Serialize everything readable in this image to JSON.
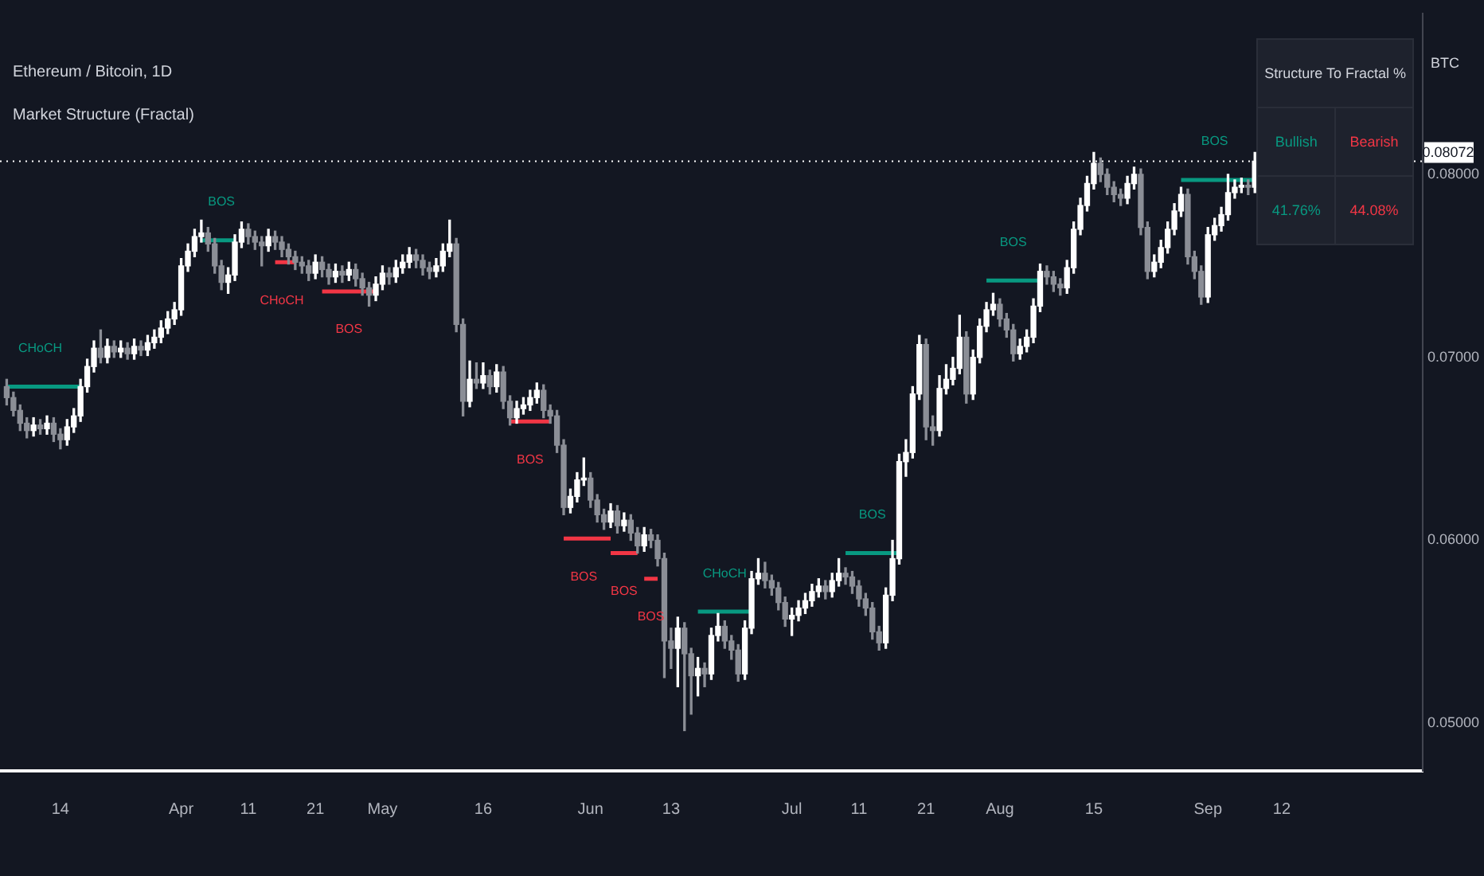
{
  "chart_data": {
    "type": "candlestick",
    "title": "Ethereum / Bitcoin, 1D",
    "subtitle": "Market Structure (Fractal)",
    "ylabel": "BTC",
    "xlim": [
      "--03-05",
      "--10-03"
    ],
    "xticks": [
      {
        "value": "--03-14",
        "label": "14"
      },
      {
        "value": "--04-01",
        "label": "Apr"
      },
      {
        "value": "--04-11",
        "label": "11"
      },
      {
        "value": "--04-21",
        "label": "21"
      },
      {
        "value": "--05-01",
        "label": "May"
      },
      {
        "value": "--05-16",
        "label": "16"
      },
      {
        "value": "--06-01",
        "label": "Jun"
      },
      {
        "value": "--06-13",
        "label": "13"
      },
      {
        "value": "--07-01",
        "label": "Jul"
      },
      {
        "value": "--07-11",
        "label": "11"
      },
      {
        "value": "--07-21",
        "label": "21"
      },
      {
        "value": "--08-01",
        "label": "Aug"
      },
      {
        "value": "--08-15",
        "label": "15"
      },
      {
        "value": "--09-01",
        "label": "Sep"
      },
      {
        "value": "--09-12",
        "label": "12"
      }
    ],
    "ylim": [
      0.0474,
      0.0888
    ],
    "yticks": [
      {
        "value": 0.05,
        "label": "0.05000"
      },
      {
        "value": 0.06,
        "label": "0.06000"
      },
      {
        "value": 0.07,
        "label": "0.07000"
      },
      {
        "value": 0.08,
        "label": "0.08000"
      }
    ],
    "grid": false,
    "legend": false,
    "ref_lines": [
      {
        "axis": "y",
        "value": 0.08072,
        "label": "0.08072",
        "color": "#ffffff"
      }
    ],
    "series": [
      {
        "x": [
          "--03-06",
          "--03-07",
          "--03-08",
          "--03-09",
          "--03-10",
          "--03-11",
          "--03-12",
          "--03-13",
          "--03-14",
          "--03-15",
          "--03-16",
          "--03-17",
          "--03-18",
          "--03-19",
          "--03-20",
          "--03-21",
          "--03-22",
          "--03-23",
          "--03-24",
          "--03-25",
          "--03-26",
          "--03-27",
          "--03-28",
          "--03-29",
          "--03-30",
          "--03-31",
          "--04-01",
          "--04-02",
          "--04-03",
          "--04-04",
          "--04-05",
          "--04-06",
          "--04-07",
          "--04-08",
          "--04-09",
          "--04-10",
          "--04-11",
          "--04-12",
          "--04-13",
          "--04-14",
          "--04-15",
          "--04-16",
          "--04-17",
          "--04-18",
          "--04-19",
          "--04-20",
          "--04-21",
          "--04-22",
          "--04-23",
          "--04-24",
          "--04-25",
          "--04-26",
          "--04-27",
          "--04-28",
          "--04-29",
          "--04-30",
          "--05-01",
          "--05-02",
          "--05-03",
          "--05-04",
          "--05-05",
          "--05-06",
          "--05-07",
          "--05-08",
          "--05-09",
          "--05-10",
          "--05-11",
          "--05-12",
          "--05-13",
          "--05-14",
          "--05-15",
          "--05-16",
          "--05-17",
          "--05-18",
          "--05-19",
          "--05-20",
          "--05-21",
          "--05-22",
          "--05-23",
          "--05-24",
          "--05-25",
          "--05-26",
          "--05-27",
          "--05-28",
          "--05-29",
          "--05-30",
          "--05-31",
          "--06-01",
          "--06-02",
          "--06-03",
          "--06-04",
          "--06-05",
          "--06-06",
          "--06-07",
          "--06-08",
          "--06-09",
          "--06-10",
          "--06-11",
          "--06-12",
          "--06-13",
          "--06-14",
          "--06-15",
          "--06-16",
          "--06-17",
          "--06-18",
          "--06-19",
          "--06-20",
          "--06-21",
          "--06-22",
          "--06-23",
          "--06-24",
          "--06-25",
          "--06-26",
          "--06-27",
          "--06-28",
          "--06-29",
          "--06-30",
          "--07-01",
          "--07-02",
          "--07-03",
          "--07-04",
          "--07-05",
          "--07-06",
          "--07-07",
          "--07-08",
          "--07-09",
          "--07-10",
          "--07-11",
          "--07-12",
          "--07-13",
          "--07-14",
          "--07-15",
          "--07-16",
          "--07-17",
          "--07-18",
          "--07-19",
          "--07-20",
          "--07-21",
          "--07-22",
          "--07-23",
          "--07-24",
          "--07-25",
          "--07-26",
          "--07-27",
          "--07-28",
          "--07-29",
          "--07-30",
          "--07-31",
          "--08-01",
          "--08-02",
          "--08-03",
          "--08-04",
          "--08-05",
          "--08-06",
          "--08-07",
          "--08-08",
          "--08-09",
          "--08-10",
          "--08-11",
          "--08-12",
          "--08-13",
          "--08-14",
          "--08-15",
          "--08-16",
          "--08-17",
          "--08-18",
          "--08-19",
          "--08-20",
          "--08-21",
          "--08-22",
          "--08-23",
          "--08-24",
          "--08-25",
          "--08-26",
          "--08-27",
          "--08-28",
          "--08-29",
          "--08-30",
          "--08-31",
          "--09-01",
          "--09-02",
          "--09-03",
          "--09-04",
          "--09-05",
          "--09-06",
          "--09-07",
          "--09-08"
        ],
        "ohlc": [
          [
            0.0684,
            0.0688,
            0.0674,
            0.0678
          ],
          [
            0.0678,
            0.0681,
            0.0668,
            0.0671
          ],
          [
            0.0671,
            0.0674,
            0.066,
            0.0664
          ],
          [
            0.0664,
            0.0667,
            0.0656,
            0.066
          ],
          [
            0.066,
            0.0667,
            0.0657,
            0.0663
          ],
          [
            0.0663,
            0.0666,
            0.0658,
            0.0661
          ],
          [
            0.0661,
            0.0668,
            0.0658,
            0.0664
          ],
          [
            0.0664,
            0.0667,
            0.0654,
            0.0658
          ],
          [
            0.0658,
            0.0661,
            0.065,
            0.0655
          ],
          [
            0.0655,
            0.0666,
            0.0652,
            0.0662
          ],
          [
            0.0662,
            0.0672,
            0.0659,
            0.0668
          ],
          [
            0.0668,
            0.0688,
            0.0665,
            0.0684
          ],
          [
            0.0684,
            0.0699,
            0.0681,
            0.0695
          ],
          [
            0.0695,
            0.0709,
            0.0692,
            0.0705
          ],
          [
            0.0705,
            0.0715,
            0.0697,
            0.07
          ],
          [
            0.07,
            0.071,
            0.0697,
            0.0706
          ],
          [
            0.0706,
            0.0709,
            0.07,
            0.0703
          ],
          [
            0.0703,
            0.0709,
            0.07,
            0.0705
          ],
          [
            0.0705,
            0.0708,
            0.0699,
            0.0702
          ],
          [
            0.0702,
            0.071,
            0.0699,
            0.0706
          ],
          [
            0.0706,
            0.0709,
            0.0701,
            0.0704
          ],
          [
            0.0704,
            0.0712,
            0.0701,
            0.0708
          ],
          [
            0.0708,
            0.0715,
            0.0705,
            0.0711
          ],
          [
            0.0711,
            0.072,
            0.0708,
            0.0716
          ],
          [
            0.0716,
            0.0725,
            0.0713,
            0.0721
          ],
          [
            0.0721,
            0.073,
            0.0718,
            0.0726
          ],
          [
            0.0726,
            0.0754,
            0.0723,
            0.075
          ],
          [
            0.075,
            0.0762,
            0.0747,
            0.0758
          ],
          [
            0.0758,
            0.077,
            0.0755,
            0.0766
          ],
          [
            0.0766,
            0.0775,
            0.0763,
            0.0768
          ],
          [
            0.0768,
            0.0771,
            0.0758,
            0.0762
          ],
          [
            0.0762,
            0.0765,
            0.0746,
            0.075
          ],
          [
            0.075,
            0.0753,
            0.0737,
            0.0741
          ],
          [
            0.0741,
            0.0749,
            0.0735,
            0.0745
          ],
          [
            0.0745,
            0.0767,
            0.0742,
            0.0763
          ],
          [
            0.0763,
            0.0774,
            0.076,
            0.077
          ],
          [
            0.077,
            0.0773,
            0.0762,
            0.0766
          ],
          [
            0.0766,
            0.0769,
            0.0759,
            0.0763
          ],
          [
            0.0763,
            0.0766,
            0.075,
            0.0761
          ],
          [
            0.0761,
            0.077,
            0.0758,
            0.0766
          ],
          [
            0.0766,
            0.0769,
            0.0759,
            0.0763
          ],
          [
            0.0763,
            0.0766,
            0.0755,
            0.0759
          ],
          [
            0.0759,
            0.0762,
            0.0751,
            0.0755
          ],
          [
            0.0755,
            0.0758,
            0.0748,
            0.0752
          ],
          [
            0.0752,
            0.0755,
            0.0746,
            0.075
          ],
          [
            0.075,
            0.0753,
            0.0742,
            0.0746
          ],
          [
            0.0746,
            0.0756,
            0.0743,
            0.0752
          ],
          [
            0.0752,
            0.0755,
            0.0744,
            0.0748
          ],
          [
            0.0748,
            0.0751,
            0.074,
            0.0744
          ],
          [
            0.0744,
            0.0751,
            0.0741,
            0.0747
          ],
          [
            0.0747,
            0.075,
            0.0741,
            0.0745
          ],
          [
            0.0745,
            0.0752,
            0.0742,
            0.0748
          ],
          [
            0.0748,
            0.0751,
            0.0739,
            0.0743
          ],
          [
            0.0743,
            0.0746,
            0.0734,
            0.0738
          ],
          [
            0.0738,
            0.0741,
            0.0728,
            0.0734
          ],
          [
            0.0734,
            0.0744,
            0.0731,
            0.074
          ],
          [
            0.074,
            0.075,
            0.0737,
            0.0746
          ],
          [
            0.0746,
            0.0749,
            0.074,
            0.0744
          ],
          [
            0.0744,
            0.0753,
            0.0741,
            0.0749
          ],
          [
            0.0749,
            0.0756,
            0.0746,
            0.0752
          ],
          [
            0.0752,
            0.076,
            0.0749,
            0.0756
          ],
          [
            0.0756,
            0.0759,
            0.0749,
            0.0753
          ],
          [
            0.0753,
            0.0756,
            0.0745,
            0.0749
          ],
          [
            0.0749,
            0.0752,
            0.0743,
            0.0747
          ],
          [
            0.0747,
            0.0754,
            0.0744,
            0.075
          ],
          [
            0.075,
            0.0762,
            0.0747,
            0.0758
          ],
          [
            0.0758,
            0.0775,
            0.0755,
            0.0762
          ],
          [
            0.0762,
            0.0765,
            0.0714,
            0.0718
          ],
          [
            0.0718,
            0.0721,
            0.0668,
            0.0676
          ],
          [
            0.0676,
            0.0698,
            0.0673,
            0.0688
          ],
          [
            0.0688,
            0.0697,
            0.0683,
            0.0686
          ],
          [
            0.0686,
            0.0697,
            0.0683,
            0.069
          ],
          [
            0.069,
            0.0693,
            0.068,
            0.0684
          ],
          [
            0.0684,
            0.0696,
            0.0681,
            0.0692
          ],
          [
            0.0692,
            0.0695,
            0.0672,
            0.0676
          ],
          [
            0.0676,
            0.0679,
            0.0663,
            0.0667
          ],
          [
            0.0667,
            0.0676,
            0.0664,
            0.0672
          ],
          [
            0.0672,
            0.0678,
            0.0669,
            0.0674
          ],
          [
            0.0674,
            0.0682,
            0.0671,
            0.0678
          ],
          [
            0.0678,
            0.0686,
            0.0675,
            0.0682
          ],
          [
            0.0682,
            0.0685,
            0.0667,
            0.0671
          ],
          [
            0.0671,
            0.0674,
            0.0664,
            0.0668
          ],
          [
            0.0668,
            0.0671,
            0.0648,
            0.0652
          ],
          [
            0.0652,
            0.0655,
            0.0614,
            0.0618
          ],
          [
            0.0618,
            0.0628,
            0.0615,
            0.0624
          ],
          [
            0.0624,
            0.0637,
            0.0621,
            0.0633
          ],
          [
            0.0633,
            0.0645,
            0.063,
            0.0634
          ],
          [
            0.0634,
            0.0637,
            0.0618,
            0.0622
          ],
          [
            0.0622,
            0.0625,
            0.061,
            0.0614
          ],
          [
            0.0614,
            0.0617,
            0.0606,
            0.061
          ],
          [
            0.061,
            0.062,
            0.0607,
            0.0616
          ],
          [
            0.0616,
            0.0619,
            0.0604,
            0.0608
          ],
          [
            0.0608,
            0.0615,
            0.0605,
            0.0611
          ],
          [
            0.0611,
            0.0614,
            0.06,
            0.0604
          ],
          [
            0.0604,
            0.0607,
            0.0593,
            0.0597
          ],
          [
            0.0597,
            0.0607,
            0.0594,
            0.0603
          ],
          [
            0.0603,
            0.0606,
            0.0596,
            0.06
          ],
          [
            0.06,
            0.0603,
            0.0586,
            0.059
          ],
          [
            0.059,
            0.0593,
            0.0525,
            0.0545
          ],
          [
            0.0545,
            0.0552,
            0.053,
            0.0541
          ],
          [
            0.0541,
            0.0558,
            0.052,
            0.0552
          ],
          [
            0.0552,
            0.0555,
            0.0496,
            0.0538
          ],
          [
            0.0538,
            0.0541,
            0.0505,
            0.0526
          ],
          [
            0.0526,
            0.0536,
            0.0515,
            0.053
          ],
          [
            0.053,
            0.0533,
            0.052,
            0.0527
          ],
          [
            0.0527,
            0.0552,
            0.0524,
            0.0548
          ],
          [
            0.0548,
            0.056,
            0.0545,
            0.0553
          ],
          [
            0.0553,
            0.0556,
            0.0541,
            0.0545
          ],
          [
            0.0545,
            0.0548,
            0.0535,
            0.054
          ],
          [
            0.054,
            0.0543,
            0.0523,
            0.0527
          ],
          [
            0.0527,
            0.0556,
            0.0524,
            0.0552
          ],
          [
            0.0552,
            0.0583,
            0.0549,
            0.0579
          ],
          [
            0.0579,
            0.059,
            0.0576,
            0.0582
          ],
          [
            0.0582,
            0.0588,
            0.0574,
            0.0578
          ],
          [
            0.0578,
            0.0581,
            0.057,
            0.0574
          ],
          [
            0.0574,
            0.0577,
            0.0562,
            0.0566
          ],
          [
            0.0566,
            0.0569,
            0.0553,
            0.0557
          ],
          [
            0.0557,
            0.0563,
            0.0548,
            0.0559
          ],
          [
            0.0559,
            0.0567,
            0.0556,
            0.0563
          ],
          [
            0.0563,
            0.0571,
            0.056,
            0.0567
          ],
          [
            0.0567,
            0.0576,
            0.0564,
            0.0572
          ],
          [
            0.0572,
            0.0579,
            0.0569,
            0.0575
          ],
          [
            0.0575,
            0.0578,
            0.0568,
            0.0572
          ],
          [
            0.0572,
            0.0582,
            0.0569,
            0.0578
          ],
          [
            0.0578,
            0.059,
            0.0575,
            0.0582
          ],
          [
            0.0582,
            0.0585,
            0.0576,
            0.058
          ],
          [
            0.058,
            0.0583,
            0.0571,
            0.0575
          ],
          [
            0.0575,
            0.0578,
            0.0564,
            0.0568
          ],
          [
            0.0568,
            0.0571,
            0.0559,
            0.0563
          ],
          [
            0.0563,
            0.0566,
            0.0546,
            0.055
          ],
          [
            0.055,
            0.0553,
            0.054,
            0.0544
          ],
          [
            0.0544,
            0.0574,
            0.0541,
            0.057
          ],
          [
            0.057,
            0.06,
            0.0567,
            0.059
          ],
          [
            0.059,
            0.0647,
            0.0587,
            0.0643
          ],
          [
            0.0643,
            0.0655,
            0.0635,
            0.0648
          ],
          [
            0.0648,
            0.0684,
            0.0645,
            0.068
          ],
          [
            0.068,
            0.0712,
            0.0677,
            0.0707
          ],
          [
            0.0707,
            0.071,
            0.0655,
            0.0662
          ],
          [
            0.0662,
            0.0668,
            0.0652,
            0.066
          ],
          [
            0.066,
            0.069,
            0.0657,
            0.0683
          ],
          [
            0.0683,
            0.0696,
            0.068,
            0.0688
          ],
          [
            0.0688,
            0.07,
            0.0685,
            0.0694
          ],
          [
            0.0694,
            0.0723,
            0.0691,
            0.0711
          ],
          [
            0.0711,
            0.0714,
            0.0675,
            0.068
          ],
          [
            0.068,
            0.0704,
            0.0677,
            0.07
          ],
          [
            0.07,
            0.0721,
            0.0697,
            0.0717
          ],
          [
            0.0717,
            0.073,
            0.0714,
            0.0726
          ],
          [
            0.0726,
            0.0735,
            0.0723,
            0.0729
          ],
          [
            0.0729,
            0.0732,
            0.0717,
            0.0721
          ],
          [
            0.0721,
            0.0724,
            0.0711,
            0.0715
          ],
          [
            0.0715,
            0.0718,
            0.0698,
            0.0702
          ],
          [
            0.0702,
            0.071,
            0.0699,
            0.0706
          ],
          [
            0.0706,
            0.0715,
            0.0703,
            0.0711
          ],
          [
            0.0711,
            0.0732,
            0.0708,
            0.0728
          ],
          [
            0.0728,
            0.0751,
            0.0725,
            0.0747
          ],
          [
            0.0747,
            0.075,
            0.074,
            0.0744
          ],
          [
            0.0744,
            0.0747,
            0.0736,
            0.074
          ],
          [
            0.074,
            0.0743,
            0.0734,
            0.0738
          ],
          [
            0.0738,
            0.0753,
            0.0735,
            0.0749
          ],
          [
            0.0749,
            0.0774,
            0.0746,
            0.077
          ],
          [
            0.077,
            0.0787,
            0.0767,
            0.0783
          ],
          [
            0.0783,
            0.0799,
            0.078,
            0.0795
          ],
          [
            0.0795,
            0.0812,
            0.0792,
            0.0806
          ],
          [
            0.0806,
            0.0809,
            0.0796,
            0.08
          ],
          [
            0.08,
            0.0803,
            0.0789,
            0.0793
          ],
          [
            0.0793,
            0.0796,
            0.0785,
            0.0789
          ],
          [
            0.0789,
            0.0792,
            0.0783,
            0.0787
          ],
          [
            0.0787,
            0.0799,
            0.0784,
            0.0795
          ],
          [
            0.0795,
            0.0804,
            0.0792,
            0.08
          ],
          [
            0.08,
            0.0803,
            0.0767,
            0.0771
          ],
          [
            0.0771,
            0.0774,
            0.0743,
            0.0747
          ],
          [
            0.0747,
            0.0756,
            0.0744,
            0.0752
          ],
          [
            0.0752,
            0.0764,
            0.0749,
            0.076
          ],
          [
            0.076,
            0.0774,
            0.0757,
            0.077
          ],
          [
            0.077,
            0.0784,
            0.0767,
            0.078
          ],
          [
            0.078,
            0.0793,
            0.0777,
            0.0789
          ],
          [
            0.0789,
            0.0792,
            0.0751,
            0.0755
          ],
          [
            0.0755,
            0.0758,
            0.0743,
            0.0747
          ],
          [
            0.0747,
            0.075,
            0.0729,
            0.0733
          ],
          [
            0.0733,
            0.0771,
            0.073,
            0.0767
          ],
          [
            0.0767,
            0.0776,
            0.0764,
            0.0772
          ],
          [
            0.0772,
            0.0782,
            0.0769,
            0.0778
          ],
          [
            0.0778,
            0.08,
            0.0775,
            0.079
          ],
          [
            0.079,
            0.0797,
            0.0787,
            0.0793
          ],
          [
            0.0793,
            0.0798,
            0.079,
            0.0794
          ],
          [
            0.0794,
            0.0797,
            0.0789,
            0.0793
          ],
          [
            0.0793,
            0.0812,
            0.079,
            0.08072
          ]
        ]
      },
      {
        "type": "line",
        "color": "#089981",
        "x": [
          "--03-06",
          "--03-17"
        ],
        "values": [
          0.0684,
          0.0684
        ]
      },
      {
        "type": "line",
        "color": "#089981",
        "x": [
          "--04-04",
          "--04-09"
        ],
        "values": [
          0.0764,
          0.0764
        ]
      },
      {
        "type": "line",
        "color": "#f23645",
        "x": [
          "--04-15",
          "--04-18"
        ],
        "values": [
          0.0752,
          0.0752
        ]
      },
      {
        "type": "line",
        "color": "#f23645",
        "x": [
          "--04-22",
          "--04-30"
        ],
        "values": [
          0.0736,
          0.0736
        ]
      },
      {
        "type": "line",
        "color": "#f23645",
        "x": [
          "--05-20",
          "--05-26"
        ],
        "values": [
          0.0665,
          0.0665
        ]
      },
      {
        "type": "line",
        "color": "#f23645",
        "x": [
          "--05-28",
          "--06-04"
        ],
        "values": [
          0.0601,
          0.0601
        ]
      },
      {
        "type": "line",
        "color": "#f23645",
        "x": [
          "--06-04",
          "--06-08"
        ],
        "values": [
          0.0593,
          0.0593
        ]
      },
      {
        "type": "line",
        "color": "#f23645",
        "x": [
          "--06-09",
          "--06-11"
        ],
        "values": [
          0.0579,
          0.0579
        ]
      },
      {
        "type": "line",
        "color": "#089981",
        "x": [
          "--06-17",
          "--06-25"
        ],
        "values": [
          0.0561,
          0.0561
        ]
      },
      {
        "type": "line",
        "color": "#089981",
        "x": [
          "--07-09",
          "--07-17"
        ],
        "values": [
          0.0593,
          0.0593
        ]
      },
      {
        "type": "line",
        "color": "#089981",
        "x": [
          "--07-30",
          "--08-07"
        ],
        "values": [
          0.0742,
          0.0742
        ]
      },
      {
        "type": "line",
        "color": "#089981",
        "x": [
          "--08-28",
          "--09-08"
        ],
        "values": [
          0.0797,
          0.0797
        ]
      }
    ],
    "annotations": [
      "Structure To Fractal %",
      "Bullish",
      "Bearish",
      "41.76%",
      "44.08%",
      {
        "text": "CHoCH",
        "x": "--03-11",
        "y": 0.0684
      },
      {
        "text": "BOS",
        "x": "--04-07",
        "y": 0.0764
      },
      {
        "text": "CHoCH",
        "x": "--04-16",
        "y": 0.0752
      },
      {
        "text": "BOS",
        "x": "--04-26",
        "y": 0.0736
      },
      {
        "text": "BOS",
        "x": "--05-23",
        "y": 0.0665
      },
      {
        "text": "BOS",
        "x": "--05-31",
        "y": 0.0601
      },
      {
        "text": "BOS",
        "x": "--06-06",
        "y": 0.0593
      },
      {
        "text": "BOS",
        "x": "--06-10",
        "y": 0.0579
      },
      {
        "text": "CHoCH",
        "x": "--06-21",
        "y": 0.0561
      },
      {
        "text": "BOS",
        "x": "--07-13",
        "y": 0.0593
      },
      {
        "text": "BOS",
        "x": "--08-03",
        "y": 0.0742
      },
      {
        "text": "BOS",
        "x": "--09-02",
        "y": 0.0797
      }
    ]
  }
}
